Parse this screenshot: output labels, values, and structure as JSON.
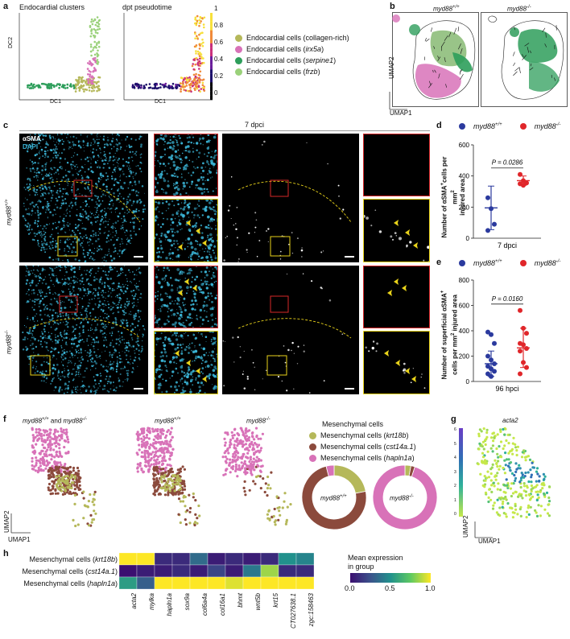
{
  "panel_labels": {
    "a": "a",
    "b": "b",
    "c": "c",
    "d": "d",
    "e": "e",
    "f": "f",
    "g": "g",
    "h": "h"
  },
  "a": {
    "plot1_title": "Endocardial clusters",
    "plot2_title": "dpt pseudotime",
    "x_label": "DC1",
    "y_label": "DC2",
    "colorbar_ticks": [
      "1",
      "0.8",
      "0.6",
      "0.4",
      "0.2",
      "0"
    ],
    "legend": [
      {
        "prefix": "Endocardial cells (",
        "gene": "collagen-rich",
        "suffix": ")",
        "gene_italic": false,
        "color": "#b5b85a"
      },
      {
        "prefix": "Endocardial cells (",
        "gene": "irx5a",
        "suffix": ")",
        "gene_italic": true,
        "color": "#d872b8"
      },
      {
        "prefix": "Endocardial cells (",
        "gene": "serpine1",
        "suffix": ")",
        "gene_italic": true,
        "color": "#2e9e5b"
      },
      {
        "prefix": "Endocardial cells (",
        "gene": "frzb",
        "suffix": ")",
        "gene_italic": true,
        "color": "#9ad17a"
      }
    ]
  },
  "b": {
    "wt_title_base": "myd88",
    "wt_title_sup": "+/+",
    "ko_title_base": "myd88",
    "ko_title_sup": "-/-",
    "x_label": "UMAP1",
    "y_label": "UMAP2"
  },
  "c": {
    "header": "7 dpci",
    "stain1": "αSMA",
    "stain2": "DAPI",
    "row1_base": "myd88",
    "row1_sup": "+/+",
    "row2_base": "myd88",
    "row2_sup": "-/-",
    "colors": {
      "dapi": "#3ab4d6",
      "sma": "#ffffff",
      "roi_red": "#d62728",
      "roi_yellow": "#e8d21a"
    }
  },
  "d": {
    "legend_wt_base": "myd88",
    "legend_wt_sup": "+/+",
    "legend_ko_base": "myd88",
    "legend_ko_sup": "-/-",
    "ylabel_line1": "Number of αSMA",
    "ylabel_line1_sup": "+",
    "ylabel_line1_tail": "cells per mm",
    "ylabel_line1_sup2": "2",
    "ylabel_line2": "injured area",
    "pvalue": "P = 0.0286",
    "xtick": "7 dpci",
    "colors": {
      "wt": "#2b3a9e",
      "ko": "#e0262a"
    }
  },
  "e": {
    "ylabel_line1": "Number of superficial αSMA",
    "ylabel_line1_sup": "+",
    "ylabel_line2": "cells per mm",
    "ylabel_line2_sup": "2",
    "ylabel_line2_tail": " injured area",
    "pvalue": "P = 0.0160",
    "xtick": "96 hpci"
  },
  "f": {
    "title_combined_base1": "myd88",
    "title_combined_sup1": "+/+",
    "title_combined_and": " and ",
    "title_combined_base2": "myd88",
    "title_combined_sup2": "-/-",
    "title_wt_base": "myd88",
    "title_wt_sup": "+/+",
    "title_ko_base": "myd88",
    "title_ko_sup": "-/-",
    "x_label": "UMAP1",
    "y_label": "UMAP2",
    "legend_title": "Mesenchymal cells",
    "legend": [
      {
        "prefix": "Mesenchymal cells (",
        "gene": "krt18b",
        "suffix": ")",
        "color": "#b5b85a"
      },
      {
        "prefix": "Mesenchymal cells (",
        "gene": "cst14a.1",
        "suffix": ")",
        "color": "#8b4a3c"
      },
      {
        "prefix": "Mesenchymal cells (",
        "gene": "hapln1a",
        "suffix": ")",
        "color": "#d872b8"
      }
    ],
    "donut_wt_base": "myd88",
    "donut_wt_sup": "+/+",
    "donut_ko_base": "myd88",
    "donut_ko_sup": "-/-"
  },
  "g": {
    "title": "acta2",
    "x_label": "UMAP1",
    "y_label": "UMAP2",
    "colorbar_ticks": [
      "6",
      "5",
      "4",
      "3",
      "2",
      "1",
      "0"
    ]
  },
  "h": {
    "legend_title_line1": "Mean expression",
    "legend_title_line2": "in group",
    "colorbar_ticks": [
      "0.0",
      "0.5",
      "1.0"
    ]
  },
  "chart_data": [
    {
      "panel": "d",
      "type": "scatter",
      "categories": [
        "myd88+/+",
        "myd88-/-"
      ],
      "ylim": [
        0,
        600
      ],
      "yticks": [
        0,
        200,
        400,
        600
      ],
      "series": [
        {
          "name": "myd88+/+",
          "values": [
            260,
            190,
            90,
            50
          ],
          "mean": 195,
          "sd_low": 55,
          "sd_high": 335,
          "color": "#2b3a9e"
        },
        {
          "name": "myd88-/-",
          "values": [
            410,
            370,
            355,
            350,
            340
          ],
          "mean": 370,
          "sd_low": 340,
          "sd_high": 400,
          "color": "#e0262a"
        }
      ],
      "pvalue": "P = 0.0286",
      "xtick": "7 dpci"
    },
    {
      "panel": "e",
      "type": "scatter",
      "categories": [
        "myd88+/+",
        "myd88-/-"
      ],
      "ylim": [
        0,
        800
      ],
      "yticks": [
        0,
        200,
        400,
        600,
        800
      ],
      "series": [
        {
          "name": "myd88+/+",
          "values": [
            390,
            370,
            300,
            200,
            170,
            140,
            120,
            100,
            80,
            60,
            40
          ],
          "mean": 140,
          "sd_low": 40,
          "sd_high": 240,
          "color": "#2b3a9e"
        },
        {
          "name": "myd88-/-",
          "values": [
            560,
            420,
            380,
            300,
            290,
            260,
            240,
            150,
            110,
            60
          ],
          "mean": 265,
          "sd_low": 110,
          "sd_high": 420,
          "color": "#e0262a"
        }
      ],
      "pvalue": "P = 0.0160",
      "xtick": "96 hpci"
    },
    {
      "panel": "f-donuts",
      "type": "pie",
      "series": [
        {
          "name": "myd88+/+",
          "labels": [
            "krt18b",
            "cst14a.1",
            "hapln1a"
          ],
          "values": [
            0.22,
            0.74,
            0.04
          ]
        },
        {
          "name": "myd88-/-",
          "labels": [
            "krt18b",
            "cst14a.1",
            "hapln1a"
          ],
          "values": [
            0.03,
            0.02,
            0.95
          ]
        }
      ],
      "colors": [
        "#b5b85a",
        "#8b4a3c",
        "#d872b8"
      ]
    },
    {
      "panel": "h",
      "type": "heatmap",
      "rows": [
        "krt18b",
        "cst14a.1",
        "hapln1a"
      ],
      "row_prefix": "Mesenchymal cells (",
      "row_suffix": ")",
      "columns": [
        "acta2",
        "mylka",
        "hapln1a",
        "sox9a",
        "col6a4a",
        "col16a1",
        "bhmt",
        "wnt5b",
        "krt15",
        "CT027638.1",
        "zgc:158463"
      ],
      "values": [
        [
          1.0,
          1.0,
          0.1,
          0.1,
          0.35,
          0.05,
          0.1,
          0.05,
          0.1,
          0.5,
          0.45
        ],
        [
          0.0,
          0.05,
          0.05,
          0.1,
          0.05,
          0.2,
          0.05,
          0.4,
          0.85,
          0.1,
          0.1
        ],
        [
          0.55,
          0.3,
          1.0,
          1.0,
          1.0,
          1.0,
          0.95,
          1.0,
          1.0,
          1.0,
          1.0
        ]
      ],
      "vmin": 0,
      "vmax": 1
    }
  ]
}
